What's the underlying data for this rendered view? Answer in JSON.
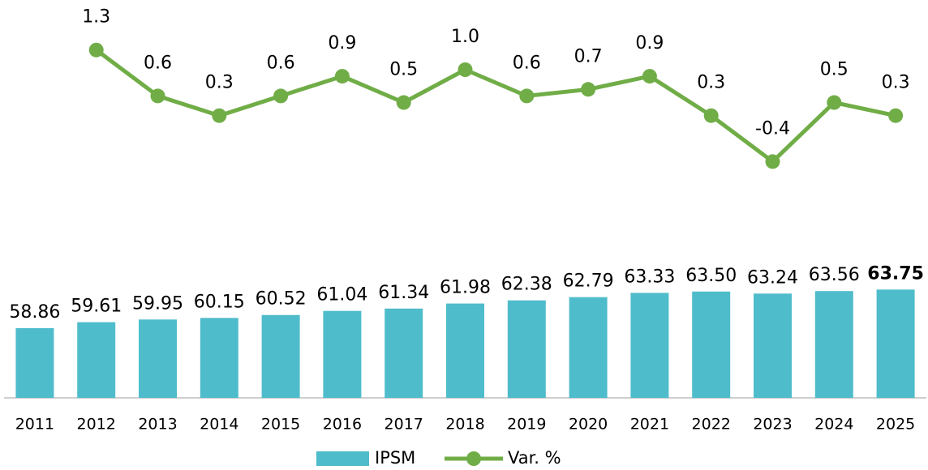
{
  "chart_data": {
    "type": "bar-line",
    "categories": [
      "2011",
      "2012",
      "2013",
      "2014",
      "2015",
      "2016",
      "2017",
      "2018",
      "2019",
      "2020",
      "2021",
      "2022",
      "2023",
      "2024",
      "2025"
    ],
    "series": [
      {
        "name": "IPSM",
        "type": "bar",
        "color": "#4fbccb",
        "values": [
          58.86,
          59.61,
          59.95,
          60.15,
          60.52,
          61.04,
          61.34,
          61.98,
          62.38,
          62.79,
          63.33,
          63.5,
          63.24,
          63.56,
          63.75
        ],
        "value_labels": [
          "58.86",
          "59.61",
          "59.95",
          "60.15",
          "60.52",
          "61.04",
          "61.34",
          "61.98",
          "62.38",
          "62.79",
          "63.33",
          "63.50",
          "63.24",
          "63.56",
          "63.75"
        ]
      },
      {
        "name": "Var. %",
        "type": "line",
        "axis": "y2",
        "color": "#70ad47",
        "values": [
          null,
          1.3,
          0.6,
          0.3,
          0.6,
          0.9,
          0.5,
          1.0,
          0.6,
          0.7,
          0.9,
          0.3,
          -0.4,
          0.5,
          0.3
        ],
        "value_labels": [
          null,
          "1.3",
          "0.6",
          "0.3",
          "0.6",
          "0.9",
          "0.5",
          "1.0",
          "0.6",
          "0.7",
          "0.9",
          "0.3",
          "-0.4",
          "0.5",
          "0.3"
        ]
      }
    ],
    "ylim": [
      50,
      100
    ],
    "y2lim": [
      -4,
      2
    ],
    "legend": "bottom"
  }
}
